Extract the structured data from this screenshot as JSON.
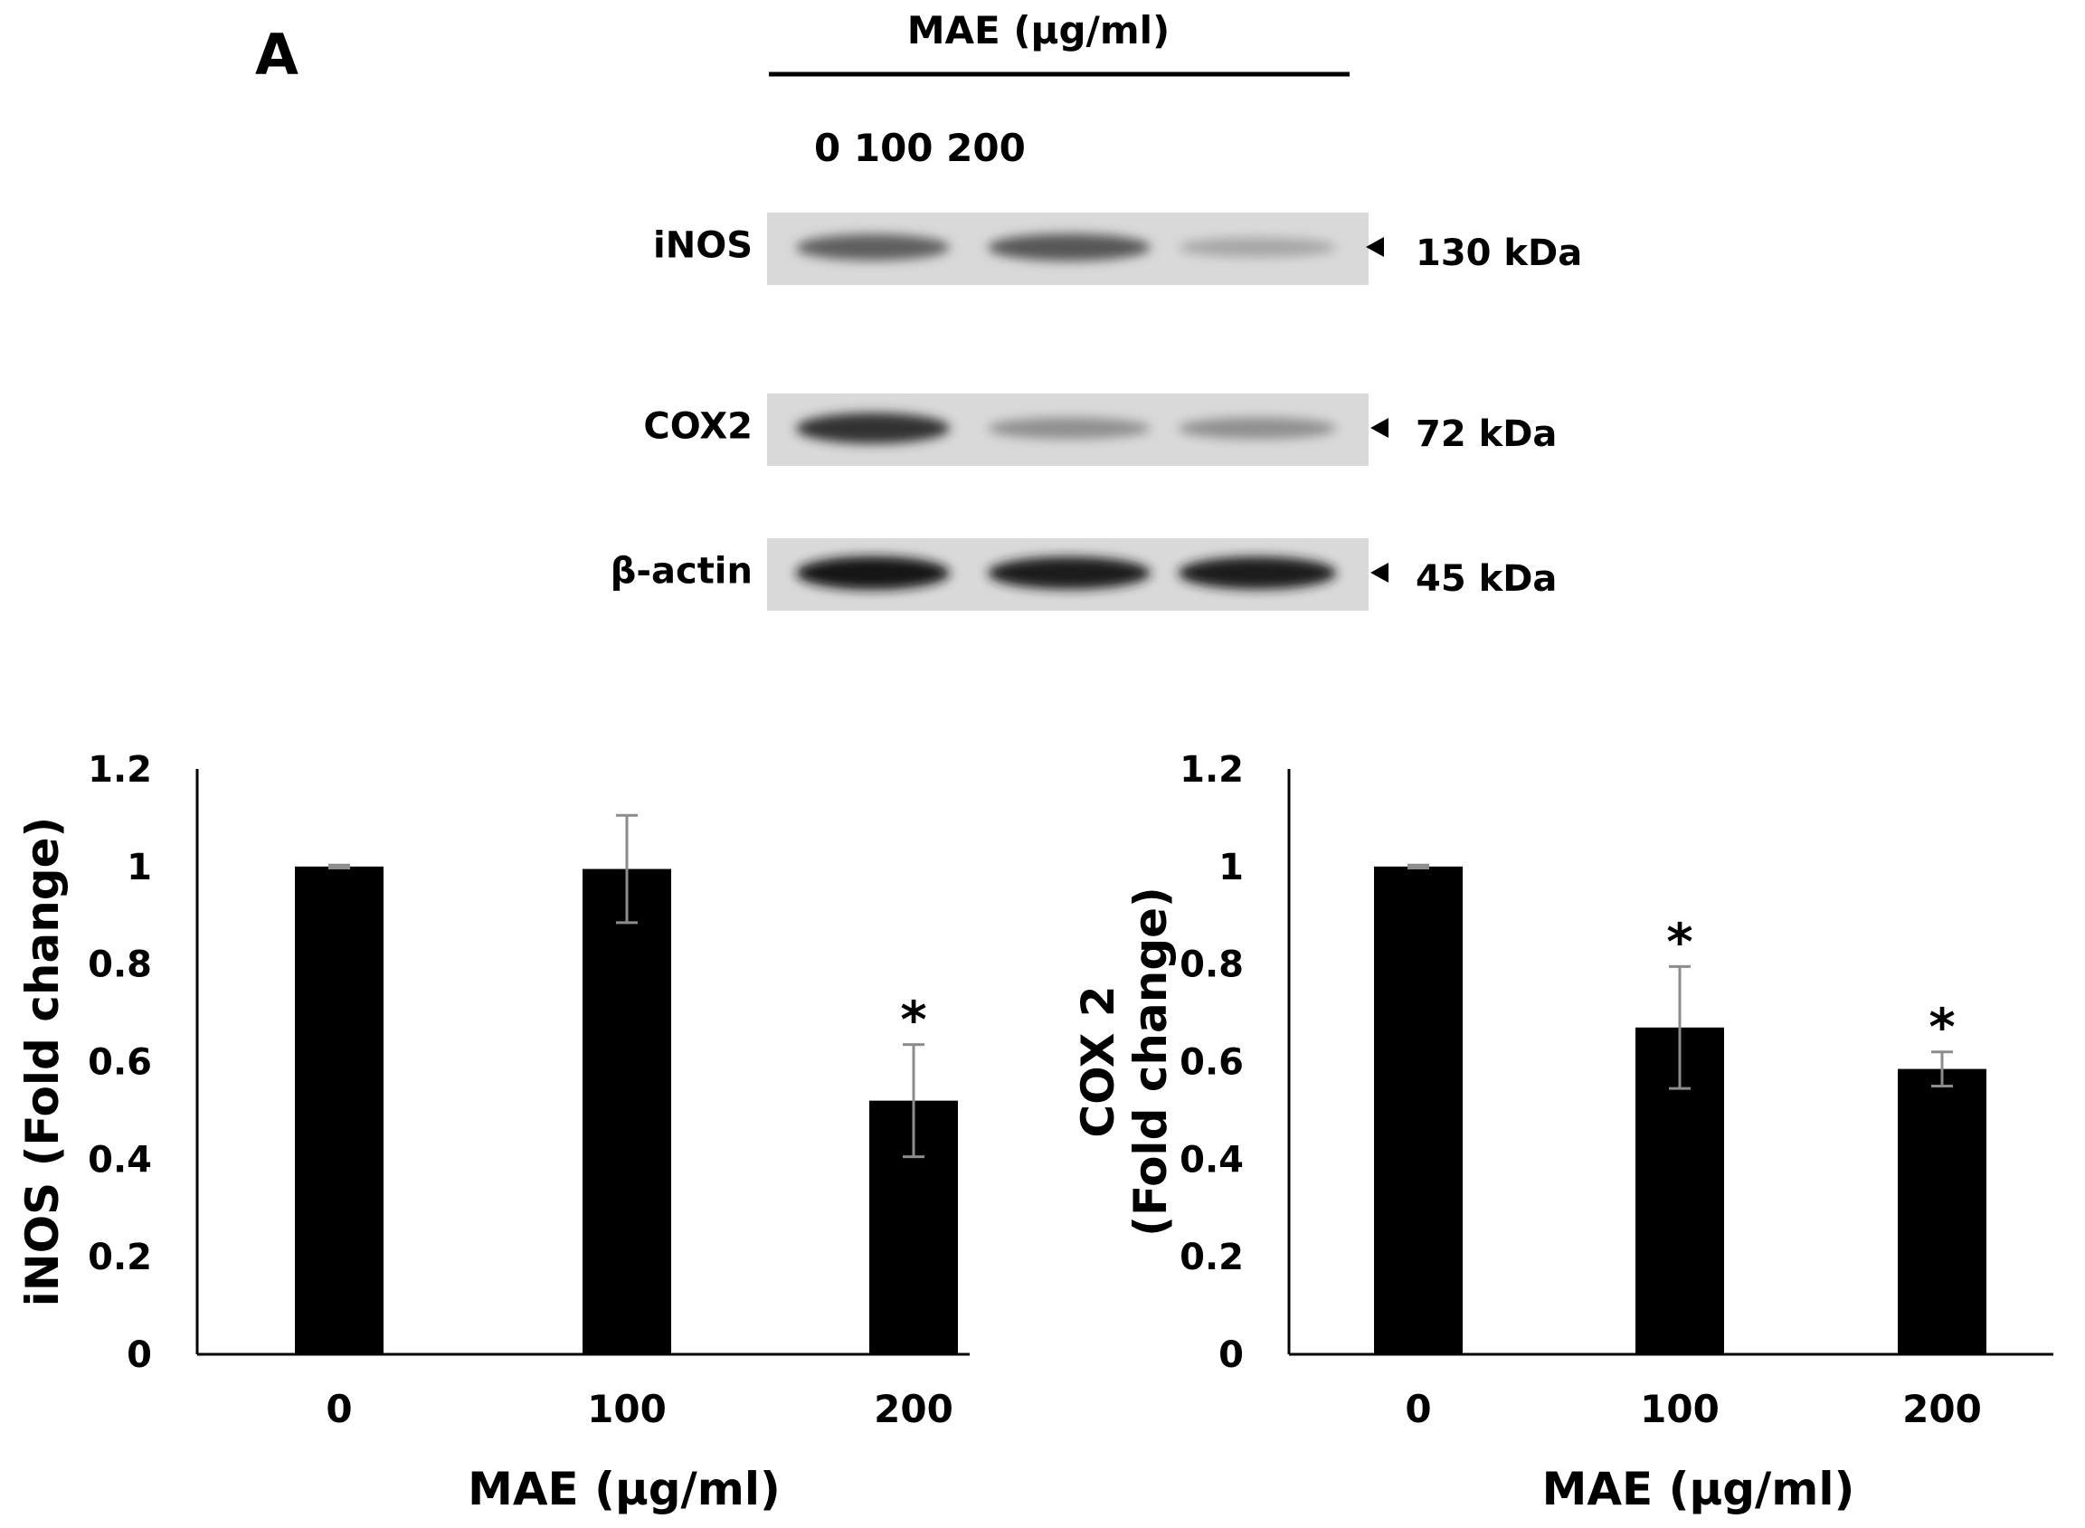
{
  "panel_label": "A",
  "blot": {
    "header": "MAE (μg/ml)",
    "lane_labels": "0 100 200",
    "rows": [
      {
        "protein": "iNOS",
        "size": "130 kDa",
        "intensities": [
          0.55,
          0.6,
          0.18
        ]
      },
      {
        "protein": "COX2",
        "size": "72 kDa",
        "intensities": [
          0.8,
          0.3,
          0.3
        ]
      },
      {
        "protein": "β-actin",
        "size": "45 kDa",
        "intensities": [
          0.95,
          0.9,
          0.9
        ]
      }
    ]
  },
  "chart_data": [
    {
      "type": "bar",
      "categories": [
        "0",
        "100",
        "200"
      ],
      "values": [
        1.0,
        0.995,
        0.52
      ],
      "errors": [
        0.003,
        0.11,
        0.115
      ],
      "significance": [
        "",
        "",
        "*"
      ],
      "xlabel": "MAE (μg/ml)",
      "ylabel": [
        "iNOS (Fold change)"
      ],
      "ylim": [
        0,
        1.2
      ],
      "yticks": [
        0,
        0.2,
        0.4,
        0.6,
        0.8,
        1,
        1.2
      ],
      "bar_color": "#000000",
      "grid": false
    },
    {
      "type": "bar",
      "categories": [
        "0",
        "100",
        "200"
      ],
      "values": [
        1.0,
        0.67,
        0.585
      ],
      "errors": [
        0.003,
        0.125,
        0.035
      ],
      "significance": [
        "",
        "*",
        "*"
      ],
      "xlabel": "MAE (μg/ml)",
      "ylabel": [
        "COX 2",
        "(Fold change)"
      ],
      "ylim": [
        0,
        1.2
      ],
      "yticks": [
        0,
        0.2,
        0.4,
        0.6,
        0.8,
        1,
        1.2
      ],
      "bar_color": "#000000",
      "grid": false
    }
  ]
}
